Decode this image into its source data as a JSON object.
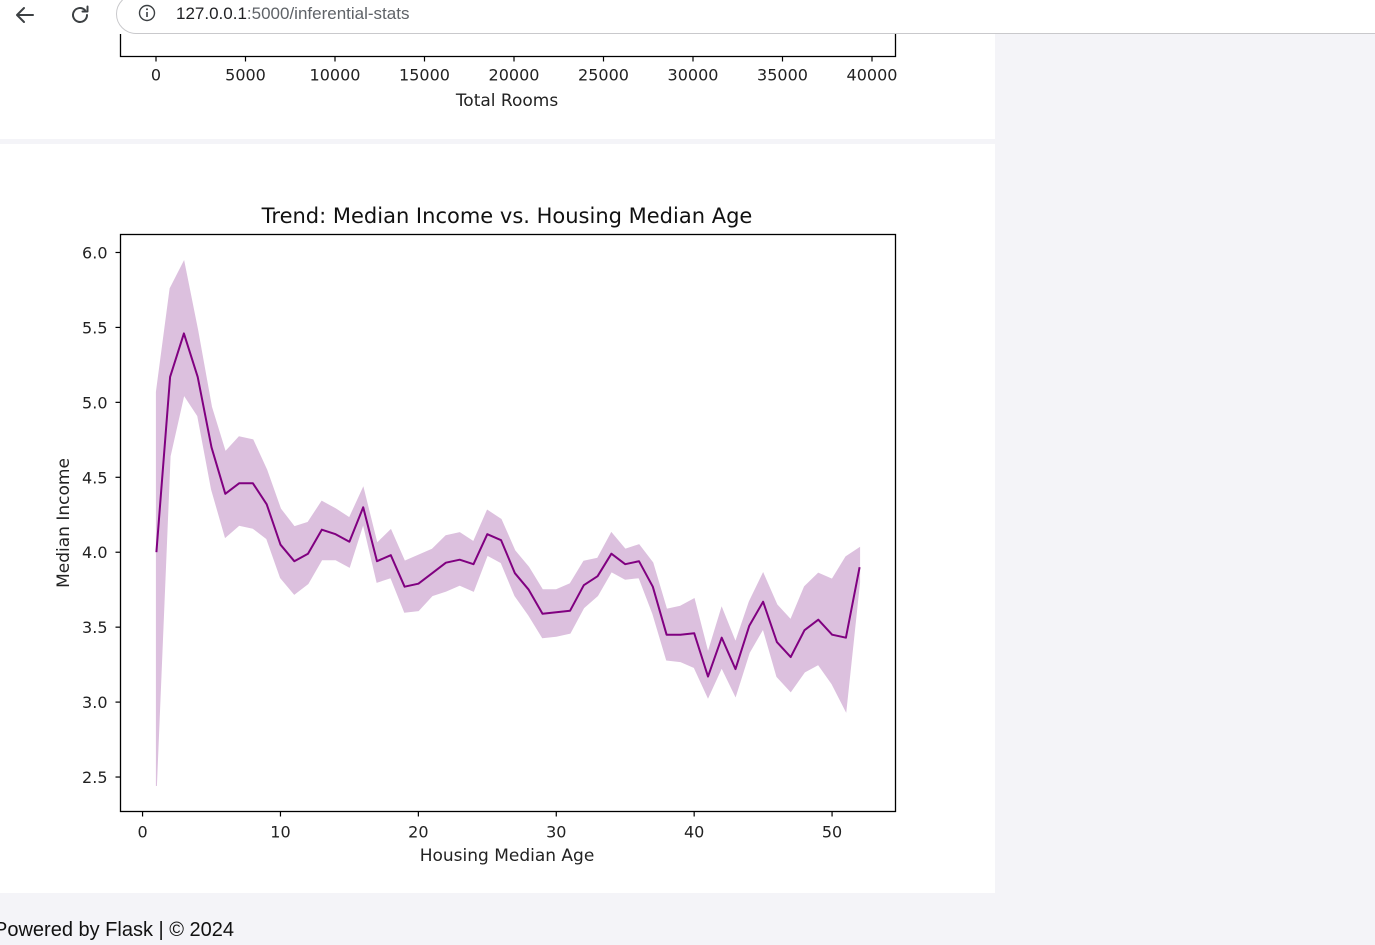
{
  "browser": {
    "back_icon": "arrow-left-icon",
    "reload_icon": "reload-icon",
    "site_info_icon": "info-icon",
    "url_host": "127.0.0.1",
    "url_rest": ":5000/inferential-stats"
  },
  "top_chart": {
    "xlabel": "Total Rooms",
    "xticks": [
      "0",
      "5000",
      "10000",
      "15000",
      "20000",
      "25000",
      "30000",
      "35000",
      "40000"
    ]
  },
  "chart_data": {
    "type": "line",
    "title": "Trend: Median Income vs. Housing Median Age",
    "xlabel": "Housing Median Age",
    "ylabel": "Median Income",
    "xlim": [
      -1.6,
      54.6
    ],
    "ylim": [
      2.27,
      6.12
    ],
    "xticks": [
      0,
      10,
      20,
      30,
      40,
      50
    ],
    "yticks": [
      "2.5",
      "3.0",
      "3.5",
      "4.0",
      "4.5",
      "5.0",
      "5.5",
      "6.0"
    ],
    "grid": false,
    "color": "#800080",
    "band_color": "#dcc0de",
    "series": [
      {
        "x": [
          1,
          2,
          3,
          4,
          5,
          6,
          7,
          8,
          9,
          10,
          11,
          12,
          13,
          14,
          15,
          16,
          17,
          18,
          19,
          20,
          21,
          22,
          23,
          24,
          25,
          26,
          27,
          28,
          29,
          30,
          31,
          32,
          33,
          34,
          35,
          36,
          37,
          38,
          39,
          40,
          41,
          42,
          43,
          44,
          45,
          46,
          47,
          48,
          49,
          50,
          51,
          52
        ],
        "y": [
          4.0,
          5.17,
          5.46,
          5.17,
          4.7,
          4.39,
          4.46,
          4.46,
          4.32,
          4.05,
          3.94,
          3.99,
          4.15,
          4.12,
          4.07,
          4.3,
          3.94,
          3.98,
          3.77,
          3.79,
          3.86,
          3.93,
          3.95,
          3.92,
          4.12,
          4.08,
          3.86,
          3.75,
          3.59,
          3.6,
          3.61,
          3.78,
          3.84,
          3.99,
          3.92,
          3.94,
          3.77,
          3.45,
          3.45,
          3.46,
          3.17,
          3.43,
          3.22,
          3.51,
          3.67,
          3.4,
          3.3,
          3.48,
          3.55,
          3.45,
          3.43,
          3.9
        ],
        "lower": [
          2.44,
          4.64,
          5.05,
          4.91,
          4.42,
          4.1,
          4.18,
          4.16,
          4.09,
          3.83,
          3.72,
          3.79,
          3.95,
          3.95,
          3.9,
          4.19,
          3.8,
          3.83,
          3.6,
          3.61,
          3.71,
          3.74,
          3.78,
          3.74,
          3.98,
          3.93,
          3.71,
          3.58,
          3.43,
          3.44,
          3.46,
          3.63,
          3.71,
          3.87,
          3.82,
          3.83,
          3.59,
          3.28,
          3.27,
          3.23,
          3.03,
          3.23,
          3.04,
          3.33,
          3.49,
          3.17,
          3.07,
          3.2,
          3.25,
          3.12,
          2.94,
          3.8
        ],
        "upper": [
          5.07,
          5.76,
          5.94,
          5.48,
          4.97,
          4.67,
          4.77,
          4.75,
          4.55,
          4.29,
          4.17,
          4.2,
          4.34,
          4.29,
          4.23,
          4.43,
          4.06,
          4.15,
          3.94,
          3.98,
          4.02,
          4.11,
          4.13,
          4.07,
          4.28,
          4.22,
          4.01,
          3.9,
          3.75,
          3.75,
          3.79,
          3.94,
          3.96,
          4.13,
          4.02,
          4.05,
          3.93,
          3.62,
          3.64,
          3.69,
          3.33,
          3.63,
          3.4,
          3.67,
          3.86,
          3.65,
          3.55,
          3.77,
          3.86,
          3.82,
          3.97,
          4.03
        ]
      }
    ]
  },
  "footer": {
    "text": "Powered by Flask | © 2024"
  }
}
